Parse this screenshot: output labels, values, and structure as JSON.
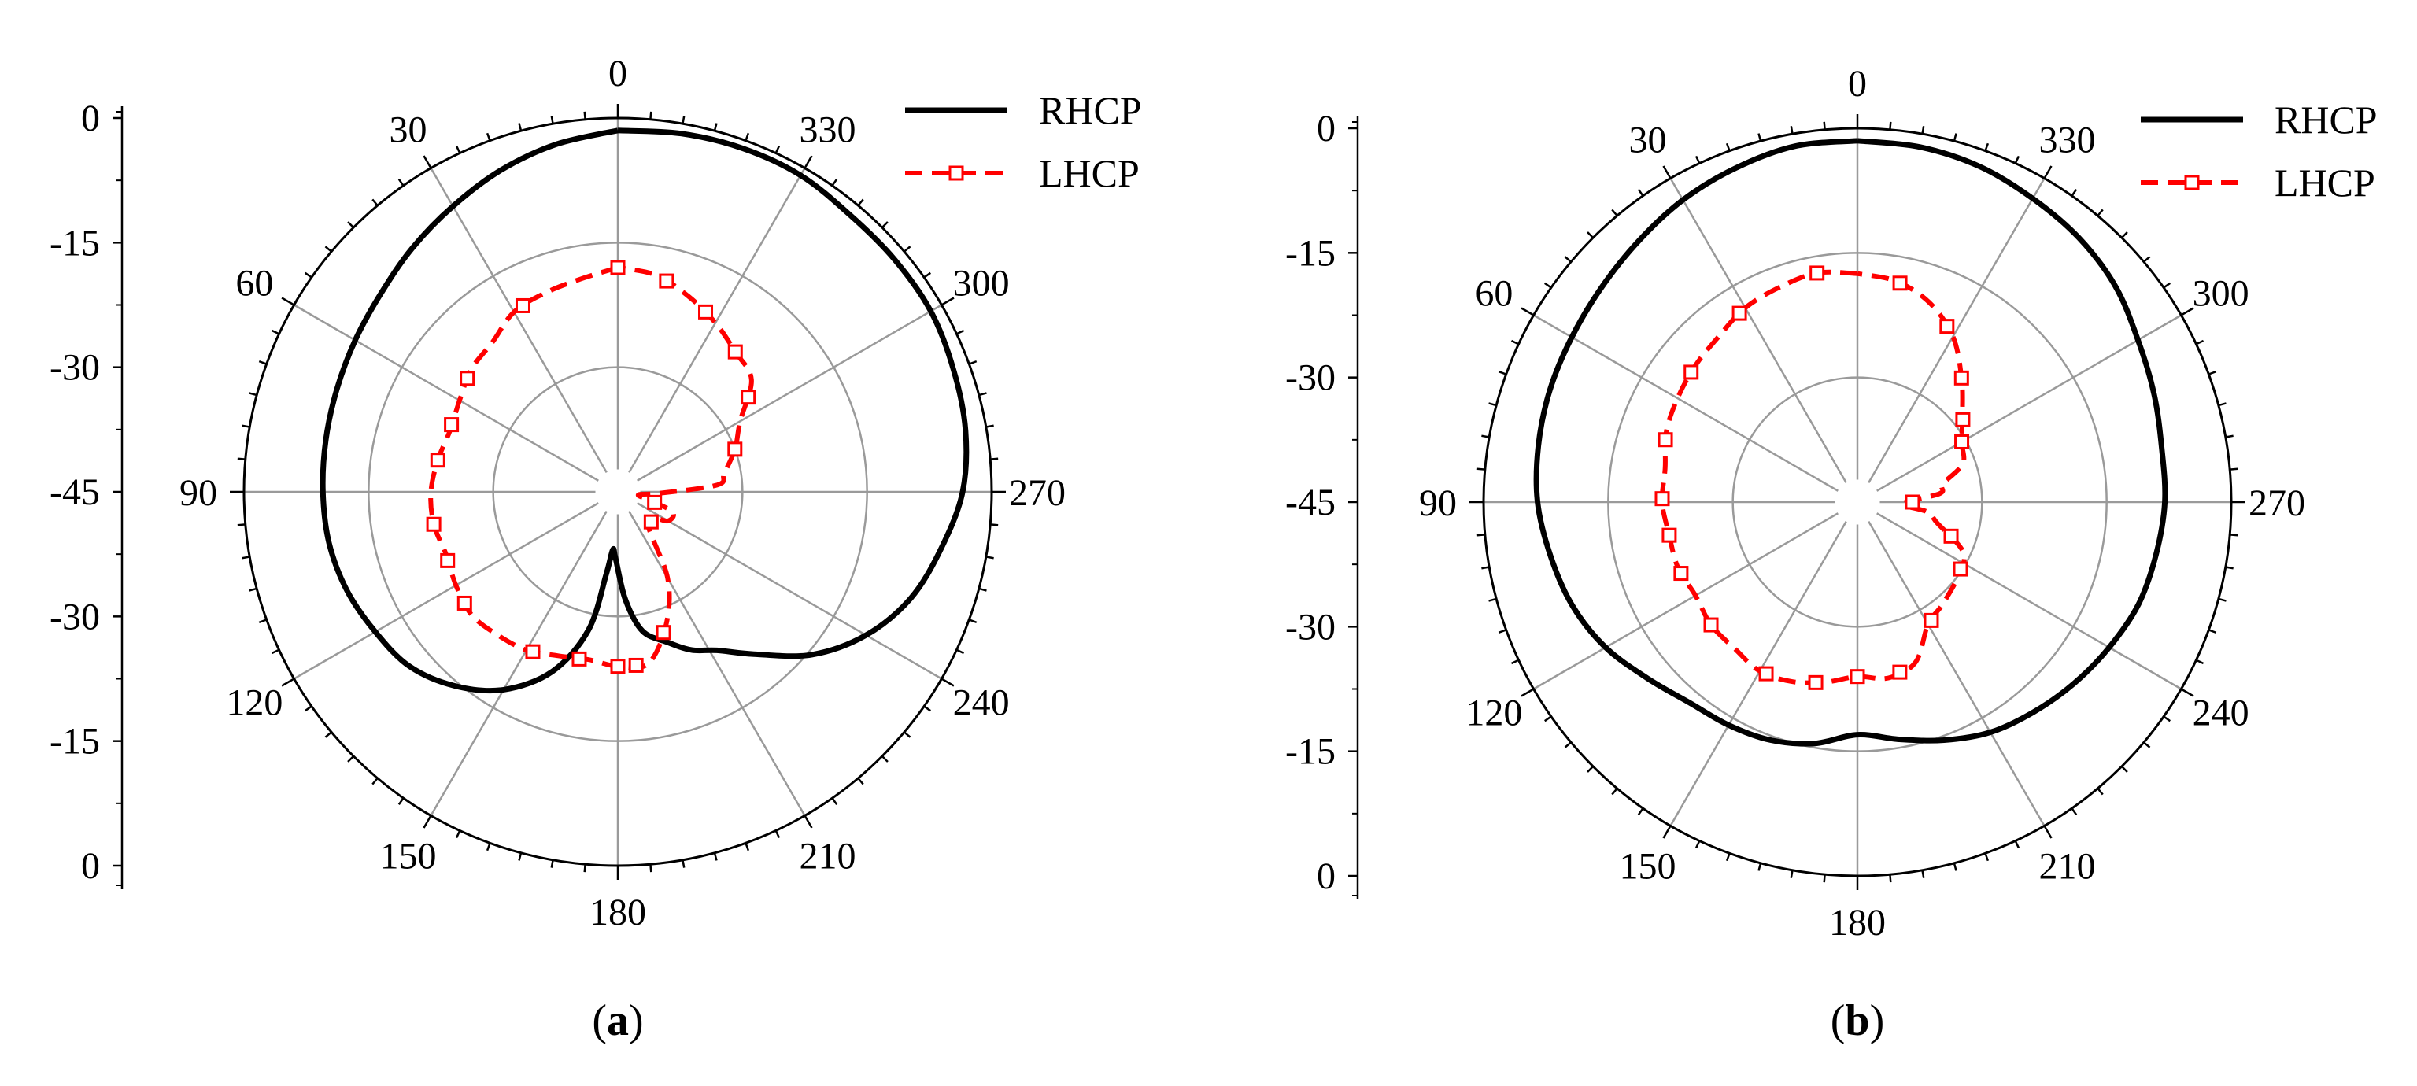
{
  "figure": {
    "colors": {
      "rhcp": "#000000",
      "lhcp": "#ff0000",
      "grid": "#9a9a9a",
      "outer": "#000000"
    }
  },
  "chart_data": [
    {
      "type": "polar-line",
      "panel_label": "a",
      "panel_prefix": "(",
      "panel_suffix": ")",
      "angular_direction": "counterclockwise",
      "zero_location": "top",
      "angle_ticks": [
        "0",
        "30",
        "60",
        "90",
        "120",
        "150",
        "180",
        "210",
        "240",
        "270",
        "300",
        "330"
      ],
      "radial_axis": {
        "range": [
          -45,
          0
        ],
        "tick_labels": [
          "0",
          "-15",
          "-30",
          "-45",
          "-30",
          "-15",
          "0"
        ],
        "grid": true
      },
      "legend": {
        "position": "top-right",
        "entries": [
          "RHCP",
          "LHCP"
        ]
      },
      "series": [
        {
          "name": "RHCP",
          "style": "solid",
          "points": [
            [
              0,
              -1.5
            ],
            [
              10,
              -2.5
            ],
            [
              20,
              -3.8
            ],
            [
              30,
              -5.3
            ],
            [
              40,
              -6.6
            ],
            [
              50,
              -7.8
            ],
            [
              60,
              -8.5
            ],
            [
              70,
              -9.0
            ],
            [
              80,
              -9.3
            ],
            [
              90,
              -9.5
            ],
            [
              100,
              -9.7
            ],
            [
              110,
              -10.3
            ],
            [
              120,
              -11.3
            ],
            [
              130,
              -12.3
            ],
            [
              140,
              -14.5
            ],
            [
              150,
              -17.5
            ],
            [
              160,
              -22.0
            ],
            [
              168,
              -28.0
            ],
            [
              172,
              -35.0
            ],
            [
              175,
              -38.0
            ],
            [
              178,
              -37.0
            ],
            [
              184,
              -32.0
            ],
            [
              190,
              -28.0
            ],
            [
              198,
              -26.0
            ],
            [
              205,
              -24.0
            ],
            [
              212,
              -22.5
            ],
            [
              220,
              -19.5
            ],
            [
              230,
              -14.5
            ],
            [
              240,
              -10.5
            ],
            [
              250,
              -7.5
            ],
            [
              260,
              -5.5
            ],
            [
              270,
              -3.5
            ],
            [
              280,
              -2.5
            ],
            [
              290,
              -2.0
            ],
            [
              300,
              -1.5
            ],
            [
              310,
              -1.5
            ],
            [
              320,
              -1.5
            ],
            [
              330,
              -1.0
            ],
            [
              340,
              -1.0
            ],
            [
              350,
              -1.2
            ],
            [
              360,
              -1.5
            ]
          ]
        },
        {
          "name": "LHCP",
          "style": "dashed",
          "points": [
            [
              0,
              -18.0
            ],
            [
              10,
              -19.0
            ],
            [
              20,
              -19.5
            ],
            [
              30,
              -20.0
            ],
            [
              40,
              -21.5
            ],
            [
              50,
              -22.0
            ],
            [
              60,
              -23.0
            ],
            [
              70,
              -23.5
            ],
            [
              80,
              -23.0
            ],
            [
              90,
              -22.5
            ],
            [
              100,
              -22.5
            ],
            [
              110,
              -23.0
            ],
            [
              120,
              -22.5
            ],
            [
              130,
              -22.0
            ],
            [
              140,
              -22.5
            ],
            [
              150,
              -23.0
            ],
            [
              160,
              -24.0
            ],
            [
              170,
              -24.5
            ],
            [
              180,
              -24.0
            ],
            [
              190,
              -24.0
            ],
            [
              200,
              -28.0
            ],
            [
              210,
              -33.0
            ],
            [
              225,
              -40.0
            ],
            [
              240,
              -38.0
            ],
            [
              250,
              -38.0
            ],
            [
              255,
              -41.0
            ],
            [
              262,
              -42.5
            ],
            [
              268,
              -40.0
            ],
            [
              274,
              -33.0
            ],
            [
              280,
              -32.0
            ],
            [
              290,
              -30.0
            ],
            [
              300,
              -28.0
            ],
            [
              310,
              -24.0
            ],
            [
              320,
              -23.0
            ],
            [
              330,
              -21.5
            ],
            [
              340,
              -20.0
            ],
            [
              350,
              -18.5
            ],
            [
              360,
              -18.0
            ]
          ],
          "markers": [
            0,
            27,
            53,
            68,
            80,
            100,
            112,
            126,
            152,
            167,
            180,
            186,
            198,
            228,
            254,
            290,
            306,
            320,
            334,
            347
          ]
        }
      ]
    },
    {
      "type": "polar-line",
      "panel_label": "b",
      "panel_prefix": "(",
      "panel_suffix": ")",
      "angular_direction": "counterclockwise",
      "zero_location": "top",
      "angle_ticks": [
        "0",
        "30",
        "60",
        "90",
        "120",
        "150",
        "180",
        "210",
        "240",
        "270",
        "300",
        "330"
      ],
      "radial_axis": {
        "range": [
          -45,
          0
        ],
        "tick_labels": [
          "0",
          "-15",
          "-30",
          "-45",
          "-30",
          "-15",
          "0"
        ],
        "grid": true
      },
      "legend": {
        "position": "top-right",
        "entries": [
          "RHCP",
          "LHCP"
        ]
      },
      "series": [
        {
          "name": "RHCP",
          "style": "solid",
          "points": [
            [
              0,
              -1.5
            ],
            [
              10,
              -1.5
            ],
            [
              20,
              -2.2
            ],
            [
              30,
              -3.0
            ],
            [
              40,
              -4.0
            ],
            [
              50,
              -4.8
            ],
            [
              60,
              -5.3
            ],
            [
              70,
              -5.6
            ],
            [
              80,
              -6.0
            ],
            [
              90,
              -6.5
            ],
            [
              100,
              -7.5
            ],
            [
              110,
              -8.5
            ],
            [
              120,
              -10.0
            ],
            [
              130,
              -12.0
            ],
            [
              140,
              -13.5
            ],
            [
              150,
              -14.0
            ],
            [
              160,
              -14.5
            ],
            [
              170,
              -15.5
            ],
            [
              180,
              -17.0
            ],
            [
              190,
              -16.0
            ],
            [
              200,
              -14.5
            ],
            [
              210,
              -13.0
            ],
            [
              220,
              -12.0
            ],
            [
              230,
              -11.0
            ],
            [
              240,
              -10.0
            ],
            [
              250,
              -9.0
            ],
            [
              260,
              -8.5
            ],
            [
              270,
              -8.0
            ],
            [
              280,
              -7.8
            ],
            [
              290,
              -7.0
            ],
            [
              300,
              -6.0
            ],
            [
              310,
              -4.5
            ],
            [
              320,
              -3.5
            ],
            [
              330,
              -2.8
            ],
            [
              340,
              -2.0
            ],
            [
              350,
              -1.6
            ],
            [
              360,
              -1.5
            ]
          ]
        },
        {
          "name": "LHCP",
          "style": "dashed",
          "points": [
            [
              0,
              -17.5
            ],
            [
              10,
              -17.0
            ],
            [
              20,
              -17.5
            ],
            [
              30,
              -18.0
            ],
            [
              40,
              -19.0
            ],
            [
              50,
              -19.5
            ],
            [
              60,
              -20.0
            ],
            [
              70,
              -20.5
            ],
            [
              80,
              -21.5
            ],
            [
              90,
              -21.5
            ],
            [
              100,
              -22.0
            ],
            [
              110,
              -22.0
            ],
            [
              120,
              -22.5
            ],
            [
              130,
              -22.0
            ],
            [
              140,
              -22.0
            ],
            [
              150,
              -21.5
            ],
            [
              160,
              -22.0
            ],
            [
              170,
              -23.0
            ],
            [
              180,
              -24.0
            ],
            [
              190,
              -23.5
            ],
            [
              200,
              -24.5
            ],
            [
              210,
              -28.0
            ],
            [
              220,
              -29.0
            ],
            [
              235,
              -30.0
            ],
            [
              245,
              -31.0
            ],
            [
              255,
              -35.0
            ],
            [
              262,
              -36.5
            ],
            [
              268,
              -39.5
            ],
            [
              276,
              -35.0
            ],
            [
              282,
              -34.5
            ],
            [
              290,
              -31.5
            ],
            [
              300,
              -30.5
            ],
            [
              310,
              -28.5
            ],
            [
              320,
              -25.5
            ],
            [
              330,
              -22.0
            ],
            [
              340,
              -19.5
            ],
            [
              350,
              -18.0
            ],
            [
              360,
              -17.5
            ]
          ],
          "markers": [
            10,
            32,
            52,
            72,
            89,
            100,
            112,
            130,
            152,
            167,
            180,
            194,
            212,
            237,
            250,
            270,
            300,
            308,
            320,
            333,
            349
          ]
        }
      ]
    }
  ]
}
